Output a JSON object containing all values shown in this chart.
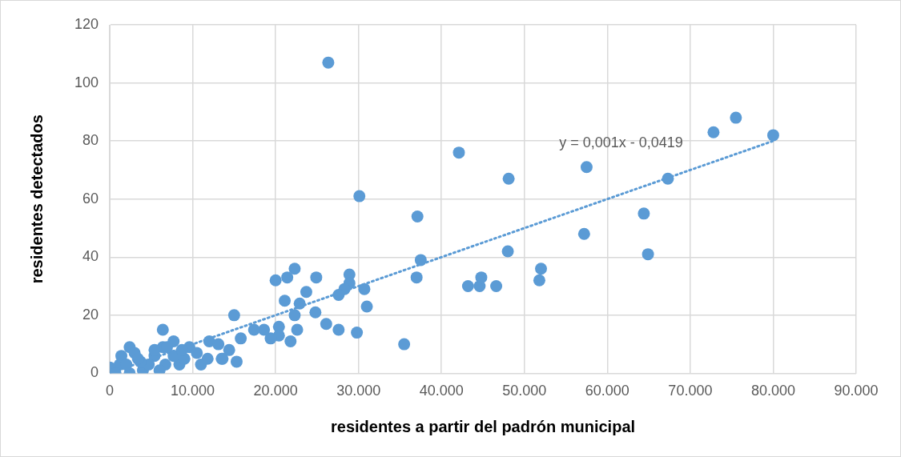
{
  "chart_data": {
    "type": "scatter",
    "xlabel": "residentes a partir del padrón municipal",
    "ylabel": "residentes detectados",
    "xlim": [
      0,
      90000
    ],
    "ylim": [
      0,
      120
    ],
    "xticks": [
      {
        "value": 0,
        "label": "0"
      },
      {
        "value": 10000,
        "label": "10.000"
      },
      {
        "value": 20000,
        "label": "20.000"
      },
      {
        "value": 30000,
        "label": "30.000"
      },
      {
        "value": 40000,
        "label": "40.000"
      },
      {
        "value": 50000,
        "label": "50.000"
      },
      {
        "value": 60000,
        "label": "60.000"
      },
      {
        "value": 70000,
        "label": "70.000"
      },
      {
        "value": 80000,
        "label": "80.000"
      },
      {
        "value": 90000,
        "label": "90.000"
      }
    ],
    "yticks": [
      0,
      20,
      40,
      60,
      80,
      100,
      120
    ],
    "grid": true,
    "legend": false,
    "marker": "circle",
    "annotations": [
      "y = 0,001x - 0,0419"
    ],
    "series": [
      {
        "type": "scatter",
        "color": "#5b9bd5",
        "x": [
          26350,
          42100,
          48100,
          57500,
          30100,
          37100,
          37500,
          37000,
          43200,
          44600,
          44800,
          46600,
          48000,
          52000,
          51800,
          57200,
          64400,
          64900,
          67300,
          72800,
          75500,
          80000,
          35500,
          29800,
          27600,
          26100,
          31000,
          30700,
          28900,
          28900,
          28300,
          27600,
          24900,
          24800,
          23700,
          22900,
          22300,
          21400,
          20000,
          21100,
          22300,
          22600,
          21800,
          20400,
          20400,
          19400,
          18600,
          17400,
          15000,
          15300,
          15800,
          13500,
          14400,
          6400,
          12000,
          13100,
          13600,
          11000,
          8400,
          9000,
          9600,
          7700,
          6400,
          5400,
          6700,
          6000,
          2400,
          3000,
          1400,
          1200,
          0,
          700,
          2400,
          4000,
          4700,
          3700,
          2000,
          7700,
          10500,
          8700,
          11800,
          3400,
          5400,
          6900
        ],
        "values": [
          107,
          76,
          67,
          71,
          61,
          54,
          39,
          33,
          30,
          30,
          33,
          30,
          42,
          36,
          32,
          48,
          55,
          41,
          67,
          83,
          88,
          82,
          10,
          14,
          15,
          17,
          23,
          29,
          34,
          31,
          29,
          27,
          33,
          21,
          28,
          24,
          36,
          33,
          32,
          25,
          20,
          15,
          11,
          16,
          13,
          12,
          15,
          15,
          20,
          4,
          12,
          5,
          8,
          15,
          11,
          10,
          5,
          3,
          3,
          5,
          9,
          11,
          9,
          6,
          3,
          1,
          9,
          7,
          6,
          3,
          2,
          0,
          0,
          1,
          3,
          4,
          3,
          6,
          7,
          8,
          5,
          5,
          8,
          9
        ]
      },
      {
        "type": "line",
        "color": "#5b9bd5",
        "line_style": "dotted",
        "marker": "none",
        "x": [
          1000,
          80000
        ],
        "values": [
          1,
          80
        ]
      }
    ]
  }
}
